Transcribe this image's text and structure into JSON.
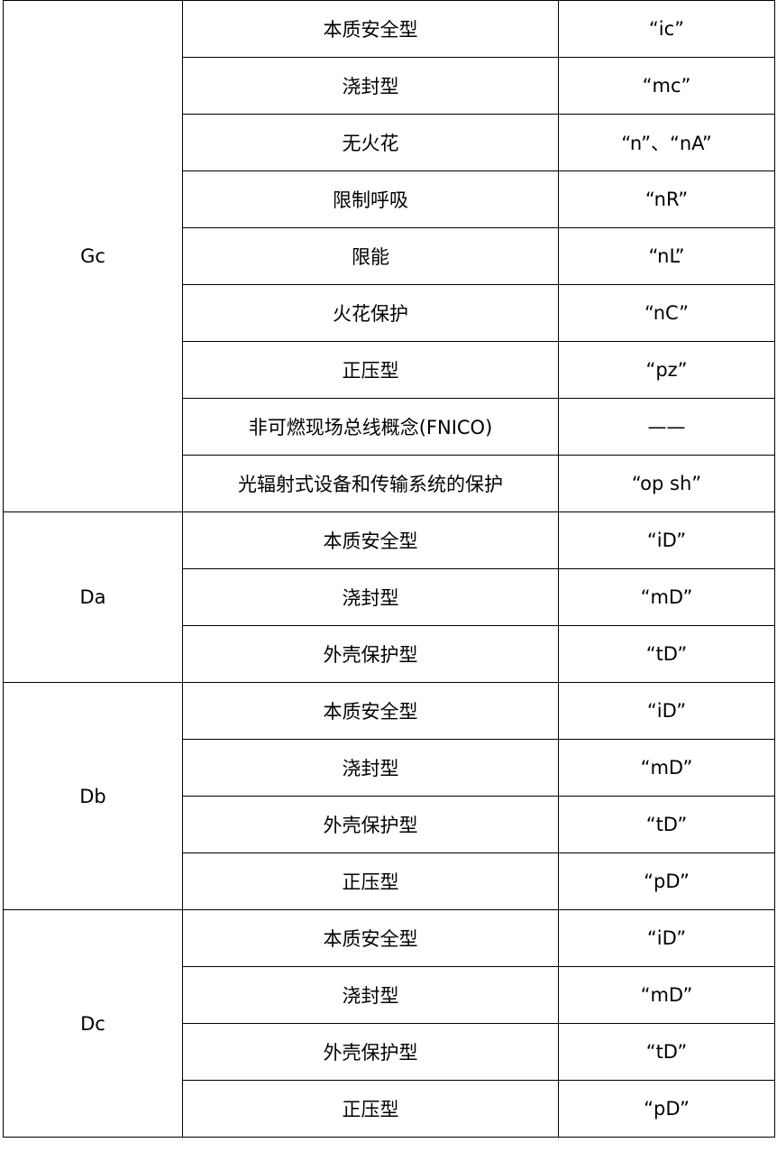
{
  "groups": [
    {
      "level": "Gc",
      "rows": [
        {
          "type": "本质安全型",
          "code": "“ic”"
        },
        {
          "type": "浇封型",
          "code": "“mc”"
        },
        {
          "type": "无火花",
          "code": "“n”、“nA”"
        },
        {
          "type": "限制呼吸",
          "code": "“nR”"
        },
        {
          "type": "限能",
          "code": "“nL”"
        },
        {
          "type": "火花保护",
          "code": "“nC”"
        },
        {
          "type": "正压型",
          "code": "“pz”"
        },
        {
          "type": "非可燃现场总线概念(FNICO)",
          "code": "——"
        },
        {
          "type": "光辐射式设备和传输系统的保护",
          "code": "“op sh”"
        }
      ]
    },
    {
      "level": "Da",
      "rows": [
        {
          "type": "本质安全型",
          "code": "“iD”"
        },
        {
          "type": "浇封型",
          "code": "“mD”"
        },
        {
          "type": "外壳保护型",
          "code": "“tD”"
        }
      ]
    },
    {
      "level": "Db",
      "rows": [
        {
          "type": "本质安全型",
          "code": "“iD”"
        },
        {
          "type": "浇封型",
          "code": "“mD”"
        },
        {
          "type": "外壳保护型",
          "code": "“tD”"
        },
        {
          "type": "正压型",
          "code": "“pD”"
        }
      ]
    },
    {
      "level": "Dc",
      "rows": [
        {
          "type": "本质安全型",
          "code": "“iD”"
        },
        {
          "type": "浇封型",
          "code": "“mD”"
        },
        {
          "type": "外壳保护型",
          "code": "“tD”"
        },
        {
          "type": "正压型",
          "code": "“pD”"
        }
      ]
    }
  ]
}
